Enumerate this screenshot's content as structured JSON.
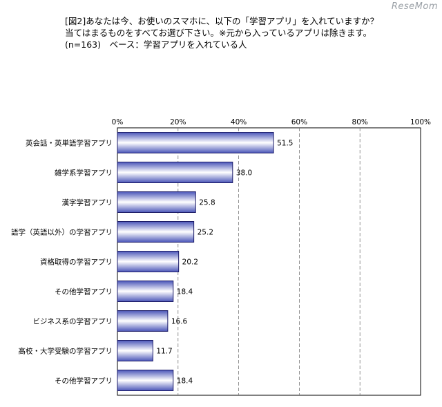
{
  "logo": "ReseMom",
  "title_lines": [
    "[図2]あなたは今、お使いのスマホに、以下の「学習アプリ」を入れていますか？",
    "当てはまるものをすべてお選び下さい。※元から入っているアプリは除きます。",
    "(n=163)　ベース：学習アプリを入れている人"
  ],
  "chart_data": {
    "type": "bar",
    "orientation": "horizontal",
    "categories": [
      "英会話・英単語学習アプリ",
      "雑学系学習アプリ",
      "漢字学習アプリ",
      "語学（英語以外）の学習アプリ",
      "資格取得の学習アプリ",
      "その他学習アプリ",
      "ビジネス系の学習アプリ",
      "高校・大学受験の学習アプリ",
      "その他学習アプリ"
    ],
    "values": [
      51.5,
      38.0,
      25.8,
      25.2,
      20.2,
      18.4,
      16.6,
      11.7,
      18.4
    ],
    "value_labels": [
      "51.5",
      "38.0",
      "25.8",
      "25.2",
      "20.2",
      "18.4",
      "16.6",
      "11.7",
      "18.4"
    ],
    "xlim": [
      0,
      100
    ],
    "xticks": [
      "0%",
      "20%",
      "40%",
      "60%",
      "80%",
      "100%"
    ],
    "xtick_values": [
      0,
      20,
      40,
      60,
      80,
      100
    ],
    "axis_position": "top",
    "grid": true,
    "bar_color": "#4a55b8",
    "bar_highlight": "#ffffff",
    "bar_edge": "#1a1a66"
  }
}
